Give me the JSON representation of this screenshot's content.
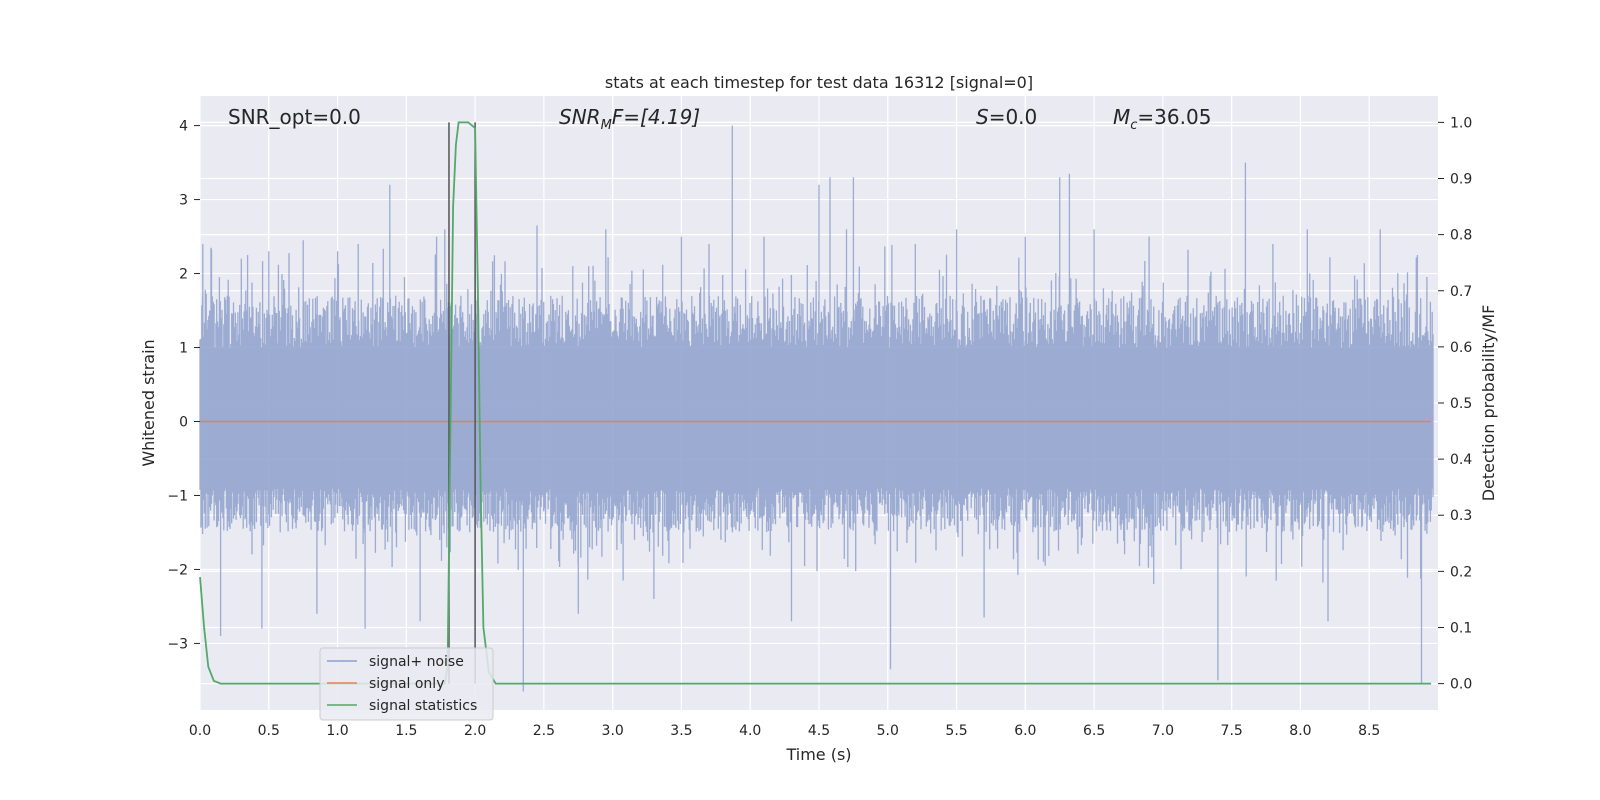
{
  "chart_data": {
    "type": "line",
    "title": "stats at each timestep for test data 16312 [signal=0]",
    "xlabel": "Time (s)",
    "ylabel": "Whitened strain",
    "y2label": "Detection probability/MF",
    "xlim": [
      0.0,
      9.0
    ],
    "ylim": [
      -3.9,
      4.4
    ],
    "y2lim": [
      -0.047,
      1.047
    ],
    "xticks": [
      "0.0",
      "0.5",
      "1.0",
      "1.5",
      "2.0",
      "2.5",
      "3.0",
      "3.5",
      "4.0",
      "4.5",
      "5.0",
      "5.5",
      "6.0",
      "6.5",
      "7.0",
      "7.5",
      "8.0",
      "8.5"
    ],
    "yticks": [
      "−3",
      "−2",
      "−1",
      "0",
      "1",
      "2",
      "3",
      "4"
    ],
    "y2ticks": [
      "0.0",
      "0.1",
      "0.2",
      "0.3",
      "0.4",
      "0.5",
      "0.6",
      "0.7",
      "0.8",
      "0.9",
      "1.0"
    ],
    "grid": true,
    "legend_position": "lower-left",
    "annotations": {
      "snr_opt": "SNR_opt=0.0",
      "snr_mf_main": "SNR",
      "snr_mf_sub": "M",
      "snr_mf_rest": "F=[4.19]",
      "s_main": "S",
      "s_rest": "=0.0",
      "mc_main": "M",
      "mc_sub": "c",
      "mc_rest": "=36.05"
    },
    "markers_x": [
      1.81,
      2.0
    ],
    "series": [
      {
        "name": "signal+ noise",
        "color": "#8da0cb",
        "kind": "noise",
        "envelope_typical": [
          -1.5,
          1.7
        ],
        "spikes": [
          [
            0.02,
            2.4
          ],
          [
            0.08,
            2.35
          ],
          [
            0.15,
            -2.9
          ],
          [
            0.3,
            2.2
          ],
          [
            0.45,
            -2.8
          ],
          [
            0.5,
            2.3
          ],
          [
            0.75,
            2.45
          ],
          [
            0.85,
            -2.6
          ],
          [
            1.0,
            2.3
          ],
          [
            1.15,
            2.4
          ],
          [
            1.2,
            -2.8
          ],
          [
            1.38,
            3.2
          ],
          [
            1.6,
            -2.7
          ],
          [
            1.72,
            2.5
          ],
          [
            1.78,
            2.6
          ],
          [
            2.0,
            2.3
          ],
          [
            2.35,
            -3.65
          ],
          [
            2.45,
            2.65
          ],
          [
            2.75,
            -2.6
          ],
          [
            2.95,
            2.6
          ],
          [
            3.3,
            -2.4
          ],
          [
            3.5,
            2.5
          ],
          [
            3.7,
            2.4
          ],
          [
            3.87,
            4.0
          ],
          [
            4.1,
            2.5
          ],
          [
            4.3,
            -2.7
          ],
          [
            4.5,
            3.2
          ],
          [
            4.58,
            3.3
          ],
          [
            4.7,
            2.6
          ],
          [
            4.75,
            3.3
          ],
          [
            5.02,
            -3.35
          ],
          [
            5.2,
            2.4
          ],
          [
            5.5,
            2.6
          ],
          [
            5.7,
            -2.65
          ],
          [
            6.0,
            2.5
          ],
          [
            6.25,
            3.3
          ],
          [
            6.32,
            3.35
          ],
          [
            6.5,
            2.6
          ],
          [
            6.9,
            2.5
          ],
          [
            7.4,
            -3.5
          ],
          [
            7.6,
            3.5
          ],
          [
            7.8,
            2.4
          ],
          [
            8.05,
            2.6
          ],
          [
            8.2,
            -2.7
          ],
          [
            8.58,
            2.6
          ],
          [
            8.85,
            2.25
          ],
          [
            8.88,
            -3.55
          ]
        ]
      },
      {
        "name": "signal only",
        "color": "#dd8452",
        "kind": "flat",
        "value": 0.0
      },
      {
        "name": "signal statistics",
        "color": "#55a868",
        "kind": "line",
        "axis": "right",
        "x": [
          0.0,
          0.03,
          0.06,
          0.1,
          0.15,
          1.78,
          1.8,
          1.82,
          1.84,
          1.86,
          1.88,
          1.9,
          1.95,
          2.0,
          2.02,
          2.04,
          2.06,
          2.1,
          2.15,
          8.95
        ],
        "y": [
          0.19,
          0.1,
          0.03,
          0.005,
          0.0,
          0.0,
          0.03,
          0.45,
          0.85,
          0.96,
          1.0,
          1.0,
          1.0,
          0.99,
          0.7,
          0.35,
          0.1,
          0.02,
          0.0,
          0.0
        ]
      }
    ]
  }
}
